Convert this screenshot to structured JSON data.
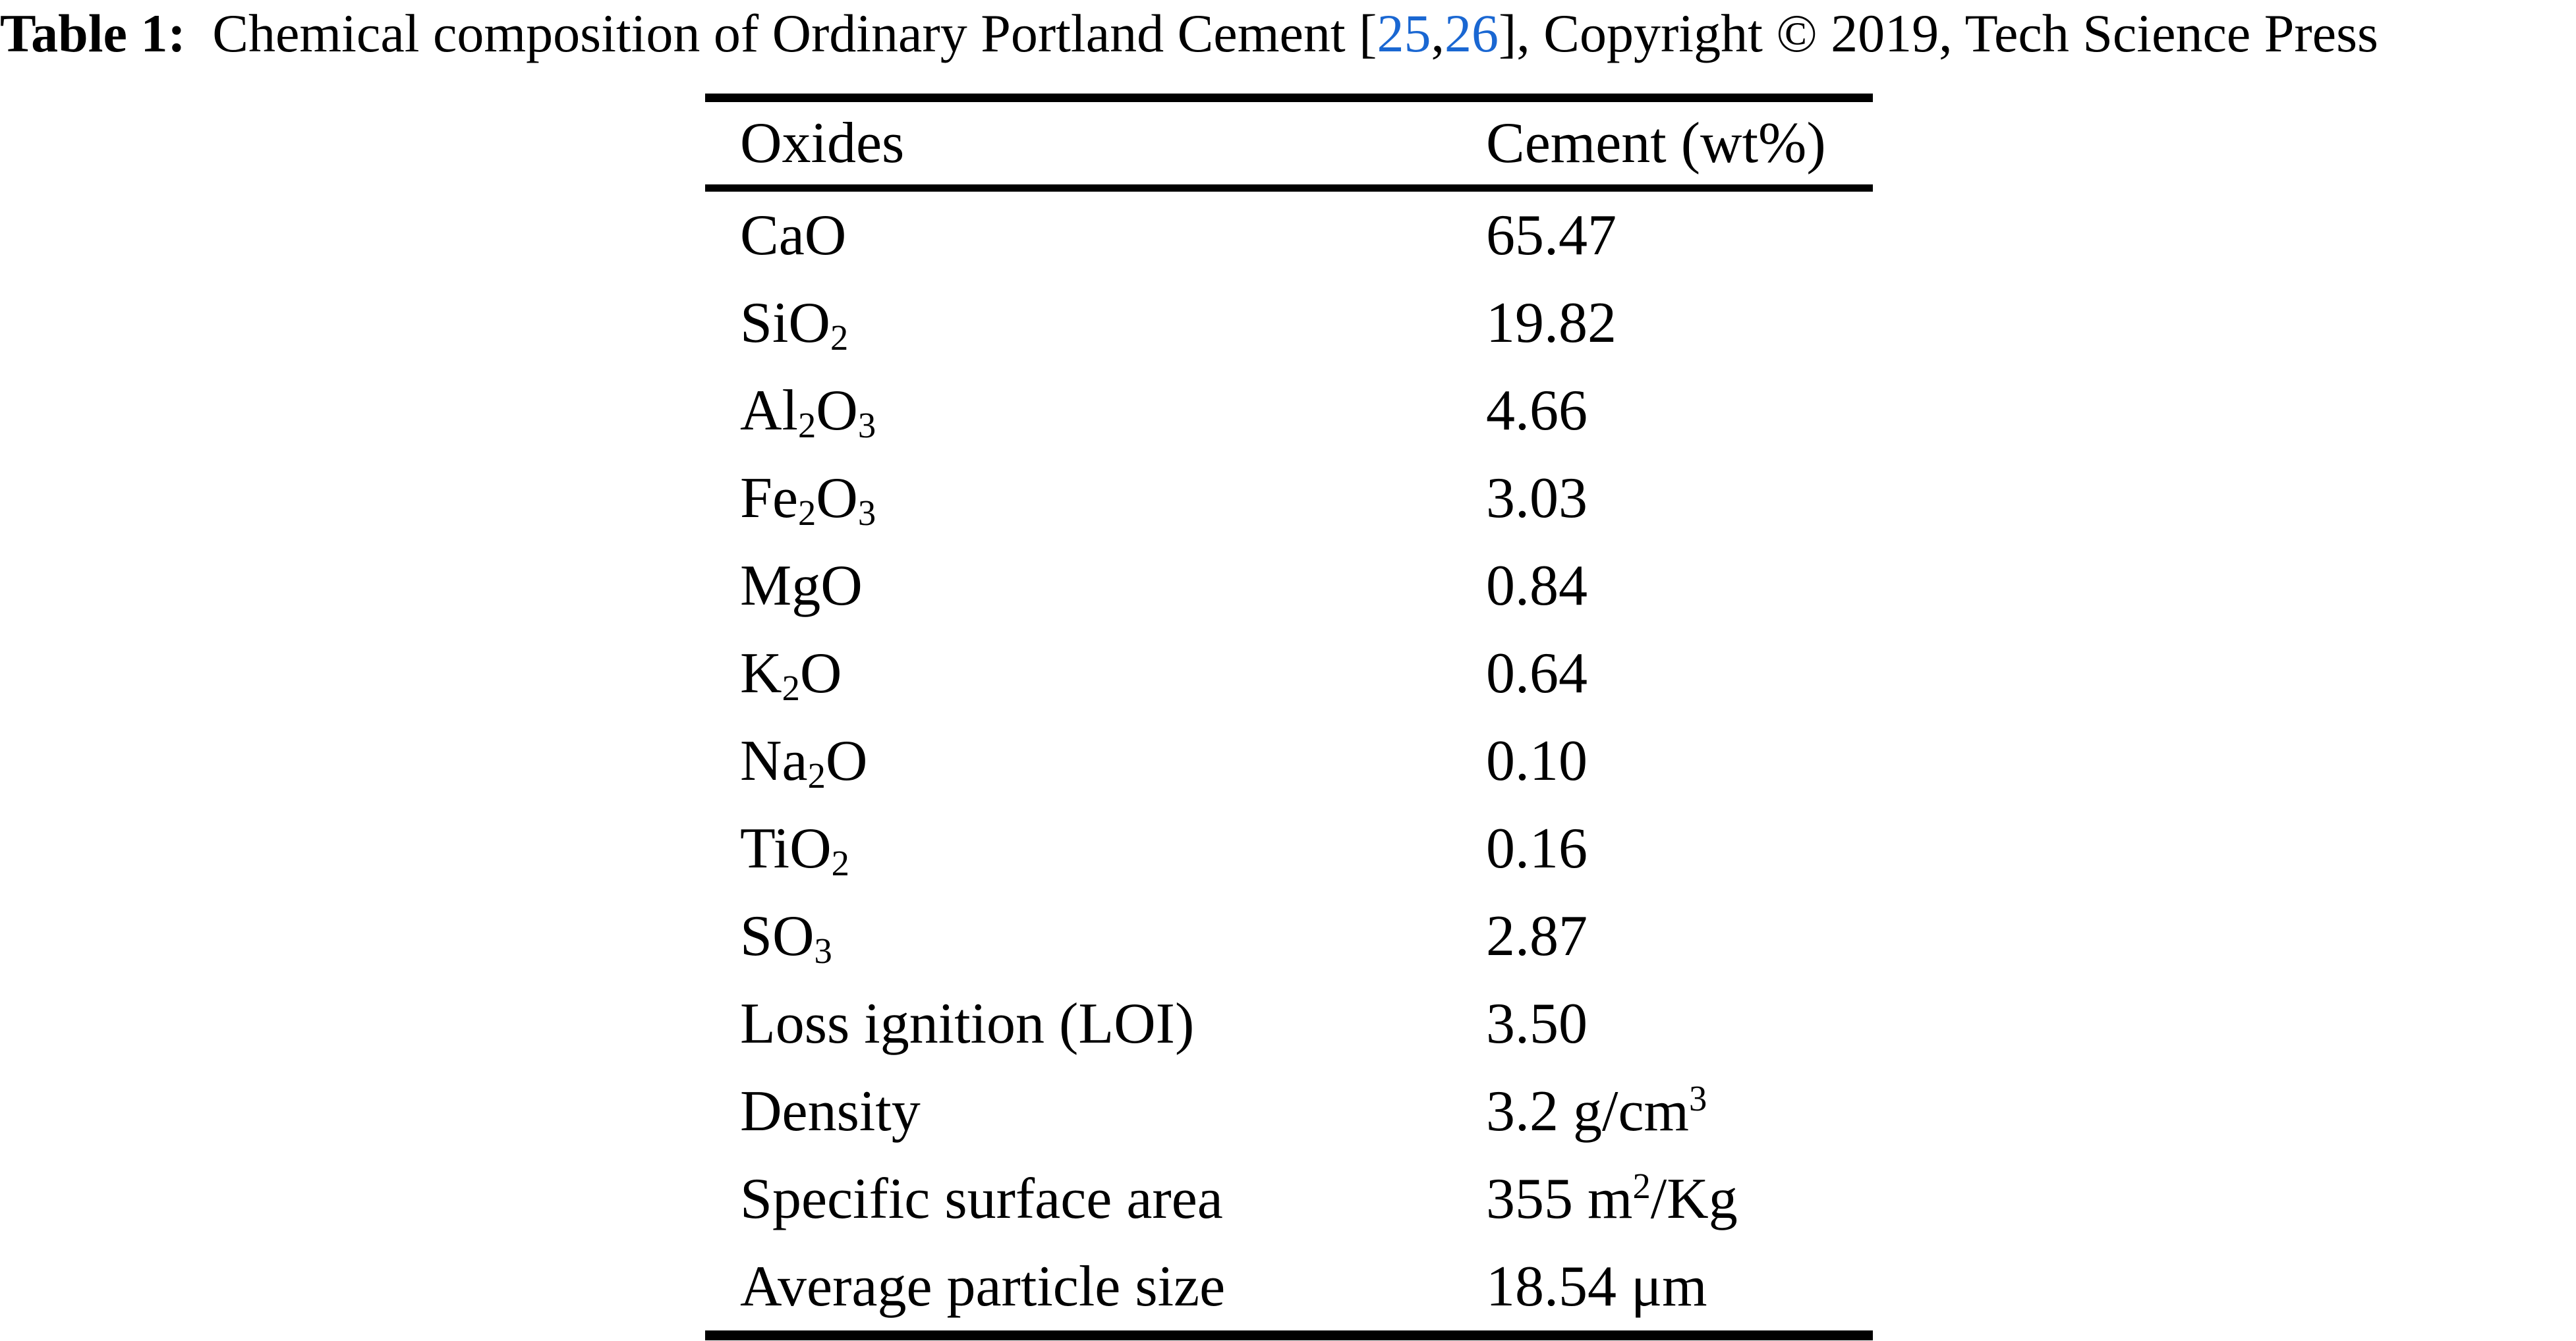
{
  "caption": {
    "label_bold": "Table 1:",
    "text_before_refs": " Chemical composition of Ordinary Portland Cement [",
    "ref1": "25",
    "ref_separator": ",",
    "ref2": "26",
    "text_after_refs": "], Copyright © 2019, Tech Science Press"
  },
  "colors": {
    "background": "#ffffff",
    "text": "#000000",
    "link_blue": "#1a67d2",
    "rule": "#000000"
  },
  "table": {
    "columns": [
      "Oxides",
      "Cement (wt%)"
    ],
    "rows": [
      {
        "l1": "CaO",
        "v1": "65.47"
      },
      {
        "l1": "SiO",
        "ls1": "2",
        "v1": "19.82"
      },
      {
        "l1": "Al",
        "ls1": "2",
        "l2": "O",
        "ls2": "3",
        "v1": "4.66"
      },
      {
        "l1": "Fe",
        "ls1": "2",
        "l2": "O",
        "ls2": "3",
        "v1": "3.03"
      },
      {
        "l1": "MgO",
        "v1": "0.84"
      },
      {
        "l1": "K",
        "ls1": "2",
        "l2": "O",
        "v1": "0.64"
      },
      {
        "l1": "Na",
        "ls1": "2",
        "l2": "O",
        "v1": "0.10"
      },
      {
        "l1": "TiO",
        "ls1": "2",
        "v1": "0.16"
      },
      {
        "l1": "SO",
        "ls1": "3",
        "v1": "2.87"
      },
      {
        "l1": "Loss ignition (LOI)",
        "v1": "3.50"
      },
      {
        "l1": "Density",
        "v1": "3.2 g/cm",
        "vsup": "3"
      },
      {
        "l1": "Specific surface area",
        "v1": "355 m",
        "vsup": "2",
        "v2": "/Kg"
      },
      {
        "l1": "Average particle size",
        "v1": "18.54 μm"
      }
    ]
  }
}
